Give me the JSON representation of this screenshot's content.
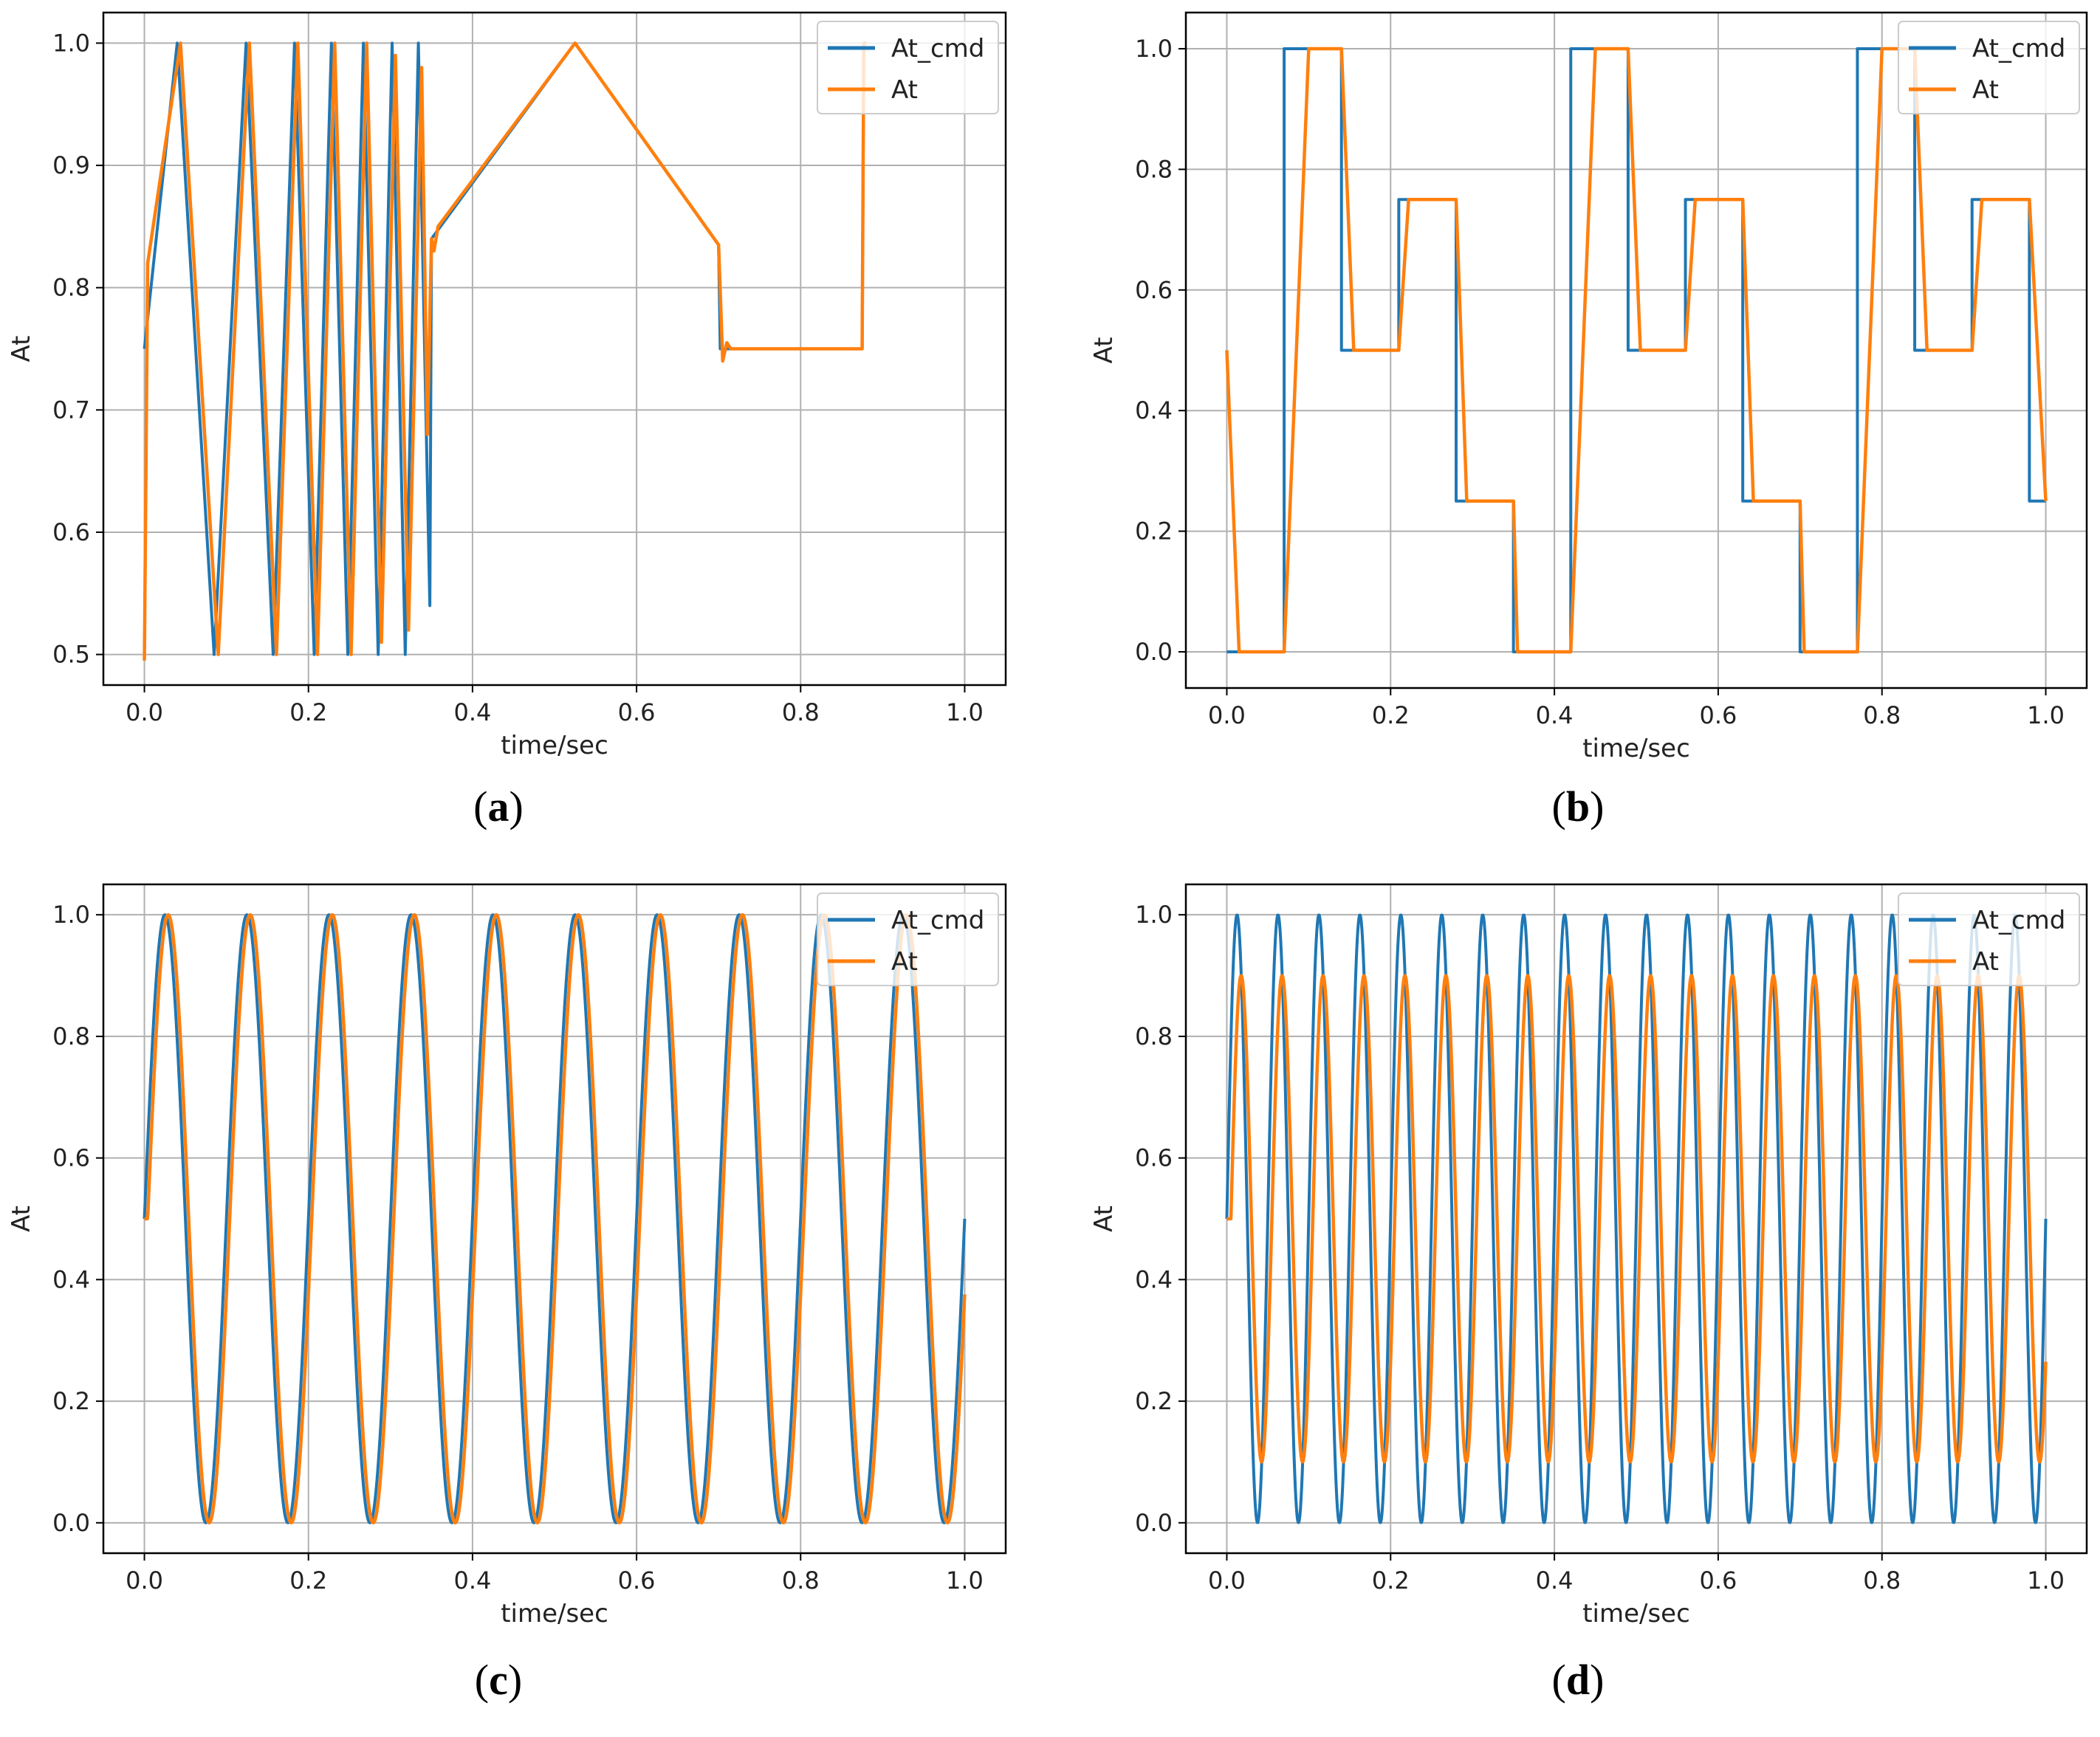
{
  "figure": {
    "panels": [
      {
        "id": "a",
        "caption_letter": "a"
      },
      {
        "id": "b",
        "caption_letter": "b"
      },
      {
        "id": "c",
        "caption_letter": "c"
      },
      {
        "id": "d",
        "caption_letter": "d"
      }
    ]
  },
  "colors": {
    "cmd": "#1f77b4",
    "resp": "#ff7f0e",
    "grid": "#b0b0b0",
    "frame": "#000000"
  },
  "chart_data": [
    {
      "id": "a",
      "type": "line",
      "title": "",
      "xlabel": "time/sec",
      "ylabel": "At",
      "xlim": [
        -0.05,
        1.05
      ],
      "ylim": [
        0.475,
        1.025
      ],
      "xticks": [
        0.0,
        0.2,
        0.4,
        0.6,
        0.8,
        1.0
      ],
      "xtick_labels": [
        "0.0",
        "0.2",
        "0.4",
        "0.6",
        "0.8",
        "1.0"
      ],
      "yticks": [
        0.5,
        0.6,
        0.7,
        0.8,
        0.9,
        1.0
      ],
      "ytick_labels": [
        "0.5",
        "0.6",
        "0.7",
        "0.8",
        "0.9",
        "1.0"
      ],
      "grid": true,
      "legend": "top-right",
      "series": [
        {
          "name": "At_cmd",
          "color": "#1f77b4",
          "x": [
            0.0,
            0.04,
            0.085,
            0.124,
            0.157,
            0.183,
            0.207,
            0.228,
            0.248,
            0.267,
            0.285,
            0.302,
            0.318,
            0.334,
            0.348,
            0.35,
            0.525,
            0.7,
            0.702,
            0.875,
            0.877,
            0.88
          ],
          "values": [
            0.75,
            1.0,
            0.5,
            1.0,
            0.5,
            1.0,
            0.5,
            1.0,
            0.5,
            1.0,
            0.5,
            1.0,
            0.5,
            1.0,
            0.54,
            0.84,
            1.0,
            0.835,
            0.75,
            0.75,
            1.0,
            1.0
          ]
        },
        {
          "name": "At",
          "color": "#ff7f0e",
          "x": [
            0.0,
            0.004,
            0.044,
            0.09,
            0.128,
            0.161,
            0.187,
            0.211,
            0.232,
            0.252,
            0.271,
            0.289,
            0.306,
            0.322,
            0.338,
            0.345,
            0.35,
            0.353,
            0.358,
            0.525,
            0.7,
            0.705,
            0.71,
            0.715,
            0.875,
            0.877,
            0.88
          ],
          "values": [
            0.495,
            0.82,
            1.0,
            0.5,
            1.0,
            0.5,
            1.0,
            0.5,
            1.0,
            0.5,
            1.0,
            0.51,
            0.99,
            0.52,
            0.98,
            0.68,
            0.84,
            0.83,
            0.85,
            1.0,
            0.835,
            0.74,
            0.755,
            0.75,
            0.75,
            1.0,
            1.0
          ]
        }
      ]
    },
    {
      "id": "b",
      "type": "line",
      "title": "",
      "xlabel": "time/sec",
      "ylabel": "At",
      "xlim": [
        -0.05,
        1.05
      ],
      "ylim": [
        -0.06,
        1.06
      ],
      "xticks": [
        0.0,
        0.2,
        0.4,
        0.6,
        0.8,
        1.0
      ],
      "xtick_labels": [
        "0.0",
        "0.2",
        "0.4",
        "0.6",
        "0.8",
        "1.0"
      ],
      "yticks": [
        0.0,
        0.2,
        0.4,
        0.6,
        0.8,
        1.0
      ],
      "ytick_labels": [
        "0.0",
        "0.2",
        "0.4",
        "0.6",
        "0.8",
        "1.0"
      ],
      "grid": true,
      "legend": "top-right",
      "series": [
        {
          "name": "At_cmd",
          "color": "#1f77b4",
          "x": [
            0.0,
            0.07,
            0.07,
            0.14,
            0.14,
            0.21,
            0.21,
            0.28,
            0.28,
            0.35,
            0.35,
            0.42,
            0.42,
            0.49,
            0.49,
            0.56,
            0.56,
            0.63,
            0.63,
            0.7,
            0.7,
            0.77,
            0.77,
            0.84,
            0.84,
            0.91,
            0.91,
            0.98,
            0.98,
            1.0
          ],
          "values": [
            0.0,
            0.0,
            1.0,
            1.0,
            0.5,
            0.5,
            0.75,
            0.75,
            0.25,
            0.25,
            0.0,
            0.0,
            1.0,
            1.0,
            0.5,
            0.5,
            0.75,
            0.75,
            0.25,
            0.25,
            0.0,
            0.0,
            1.0,
            1.0,
            0.5,
            0.5,
            0.75,
            0.75,
            0.25,
            0.25
          ]
        },
        {
          "name": "At",
          "color": "#ff7f0e",
          "x": [
            0.0,
            0.015,
            0.07,
            0.1,
            0.14,
            0.155,
            0.21,
            0.222,
            0.28,
            0.293,
            0.35,
            0.355,
            0.42,
            0.45,
            0.49,
            0.505,
            0.56,
            0.572,
            0.63,
            0.643,
            0.7,
            0.705,
            0.77,
            0.8,
            0.84,
            0.855,
            0.91,
            0.922,
            0.98,
            1.0
          ],
          "values": [
            0.5,
            0.0,
            0.0,
            1.0,
            1.0,
            0.5,
            0.5,
            0.75,
            0.75,
            0.25,
            0.25,
            0.0,
            0.0,
            1.0,
            1.0,
            0.5,
            0.5,
            0.75,
            0.75,
            0.25,
            0.25,
            0.0,
            0.0,
            1.0,
            1.0,
            0.5,
            0.5,
            0.75,
            0.75,
            0.25
          ]
        }
      ]
    },
    {
      "id": "c",
      "type": "line",
      "title": "",
      "xlabel": "time/sec",
      "ylabel": "At",
      "xlim": [
        -0.05,
        1.05
      ],
      "ylim": [
        -0.05,
        1.05
      ],
      "xticks": [
        0.0,
        0.2,
        0.4,
        0.6,
        0.8,
        1.0
      ],
      "xtick_labels": [
        "0.0",
        "0.2",
        "0.4",
        "0.6",
        "0.8",
        "1.0"
      ],
      "yticks": [
        0.0,
        0.2,
        0.4,
        0.6,
        0.8,
        1.0
      ],
      "ytick_labels": [
        "0.0",
        "0.2",
        "0.4",
        "0.6",
        "0.8",
        "1.0"
      ],
      "grid": true,
      "legend": "top-right",
      "series": [
        {
          "name": "At_cmd",
          "color": "#1f77b4",
          "function": "sine",
          "frequency_hz": 10,
          "offset": 0.5,
          "amplitude": 0.5,
          "phase_delay_sec": 0.0,
          "x_start": 0.0,
          "x_end": 1.0
        },
        {
          "name": "At",
          "color": "#ff7f0e",
          "function": "sine",
          "frequency_hz": 10,
          "offset": 0.5,
          "amplitude": 0.5,
          "phase_delay_sec": 0.004,
          "x_start": 0.0,
          "x_end": 1.0
        }
      ]
    },
    {
      "id": "d",
      "type": "line",
      "title": "",
      "xlabel": "time/sec",
      "ylabel": "At",
      "xlim": [
        -0.05,
        1.05
      ],
      "ylim": [
        -0.05,
        1.05
      ],
      "xticks": [
        0.0,
        0.2,
        0.4,
        0.6,
        0.8,
        1.0
      ],
      "xtick_labels": [
        "0.0",
        "0.2",
        "0.4",
        "0.6",
        "0.8",
        "1.0"
      ],
      "yticks": [
        0.0,
        0.2,
        0.4,
        0.6,
        0.8,
        1.0
      ],
      "ytick_labels": [
        "0.0",
        "0.2",
        "0.4",
        "0.6",
        "0.8",
        "1.0"
      ],
      "grid": true,
      "legend": "top-right",
      "series": [
        {
          "name": "At_cmd",
          "color": "#1f77b4",
          "function": "sine",
          "frequency_hz": 20,
          "offset": 0.5,
          "amplitude": 0.5,
          "phase_delay_sec": 0.0,
          "x_start": 0.0,
          "x_end": 1.0
        },
        {
          "name": "At",
          "color": "#ff7f0e",
          "function": "sine",
          "frequency_hz": 20,
          "offset": 0.5,
          "amplitude": 0.4,
          "phase_delay_sec": 0.005,
          "x_start": 0.0,
          "x_end": 1.0
        }
      ]
    }
  ]
}
